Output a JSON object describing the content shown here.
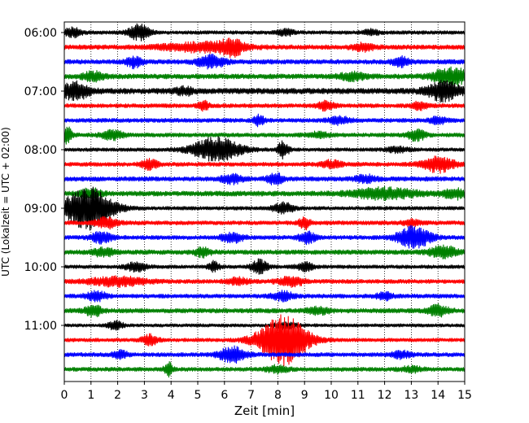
{
  "chart_data": {
    "type": "line",
    "subtype": "helicorder-seismogram",
    "title": "",
    "xlabel": "Zeit  [min]",
    "ylabel": "UTC (Lokalzeit = UTC + 02:00)",
    "xlim": [
      0,
      15
    ],
    "x_ticks": [
      0,
      1,
      2,
      3,
      4,
      5,
      6,
      7,
      8,
      9,
      10,
      11,
      12,
      13,
      14,
      15
    ],
    "y_tick_labels": [
      "06:00",
      "07:00",
      "08:00",
      "09:00",
      "10:00",
      "11:00"
    ],
    "grid": {
      "vertical": true,
      "style": "dotted"
    },
    "line_minutes": 15,
    "trace_colors": [
      "#000000",
      "#ff0000",
      "#0000ff",
      "#008000"
    ],
    "traces": [
      {
        "start": "06:00",
        "base": 0.22,
        "events": [
          [
            0.3,
            0.5,
            0.35
          ],
          [
            2.8,
            0.9,
            0.4
          ],
          [
            8.3,
            0.4,
            0.3
          ],
          [
            11.5,
            0.3,
            0.3
          ]
        ]
      },
      {
        "start": "06:15",
        "base": 0.28,
        "events": [
          [
            5.2,
            0.5,
            1.5
          ],
          [
            6.3,
            0.8,
            0.4
          ],
          [
            11.2,
            0.4,
            0.4
          ]
        ]
      },
      {
        "start": "06:30",
        "base": 0.28,
        "events": [
          [
            2.6,
            0.6,
            0.3
          ],
          [
            5.5,
            0.7,
            0.5
          ],
          [
            12.6,
            0.6,
            0.3
          ]
        ]
      },
      {
        "start": "06:45",
        "base": 0.3,
        "events": [
          [
            1.1,
            0.5,
            0.4
          ],
          [
            10.8,
            0.4,
            0.5
          ],
          [
            14.5,
            1.0,
            0.7
          ]
        ]
      },
      {
        "start": "07:00",
        "base": 0.35,
        "events": [
          [
            0.4,
            1.0,
            0.5
          ],
          [
            14.2,
            1.1,
            0.6
          ],
          [
            4.5,
            0.4,
            0.3
          ]
        ]
      },
      {
        "start": "07:15",
        "base": 0.25,
        "events": [
          [
            5.2,
            0.6,
            0.2
          ],
          [
            9.8,
            0.5,
            0.3
          ],
          [
            13.3,
            0.4,
            0.3
          ]
        ]
      },
      {
        "start": "07:30",
        "base": 0.25,
        "events": [
          [
            7.3,
            0.6,
            0.2
          ],
          [
            10.3,
            0.4,
            0.4
          ],
          [
            14.0,
            0.4,
            0.3
          ]
        ]
      },
      {
        "start": "07:45",
        "base": 0.25,
        "events": [
          [
            0.1,
            0.9,
            0.2
          ],
          [
            1.8,
            0.5,
            0.4
          ],
          [
            13.2,
            0.7,
            0.3
          ],
          [
            9.5,
            0.3,
            0.4
          ]
        ]
      },
      {
        "start": "08:00",
        "base": 0.22,
        "events": [
          [
            5.7,
            1.4,
            0.9
          ],
          [
            8.2,
            1.0,
            0.2
          ],
          [
            12.5,
            0.3,
            0.4
          ]
        ]
      },
      {
        "start": "08:15",
        "base": 0.25,
        "events": [
          [
            3.2,
            0.6,
            0.3
          ],
          [
            10.0,
            0.4,
            0.4
          ],
          [
            14.0,
            0.9,
            0.6
          ]
        ]
      },
      {
        "start": "08:30",
        "base": 0.28,
        "events": [
          [
            6.3,
            0.5,
            0.4
          ],
          [
            7.9,
            0.6,
            0.3
          ],
          [
            11.3,
            0.4,
            0.4
          ]
        ]
      },
      {
        "start": "08:45",
        "base": 0.3,
        "events": [
          [
            1.0,
            0.5,
            0.4
          ],
          [
            12.0,
            0.6,
            1.2
          ],
          [
            14.6,
            0.6,
            0.4
          ]
        ]
      },
      {
        "start": "09:00",
        "base": 0.22,
        "events": [
          [
            0.9,
            2.5,
            0.9
          ],
          [
            8.2,
            0.6,
            0.4
          ]
        ]
      },
      {
        "start": "09:15",
        "base": 0.25,
        "events": [
          [
            1.6,
            0.6,
            0.4
          ],
          [
            9.0,
            0.7,
            0.2
          ],
          [
            13.0,
            0.4,
            0.3
          ]
        ]
      },
      {
        "start": "09:30",
        "base": 0.25,
        "events": [
          [
            1.4,
            0.6,
            0.4
          ],
          [
            6.3,
            0.6,
            0.4
          ],
          [
            9.1,
            0.7,
            0.3
          ],
          [
            13.1,
            1.3,
            0.6
          ]
        ]
      },
      {
        "start": "09:45",
        "base": 0.28,
        "events": [
          [
            1.5,
            0.5,
            0.4
          ],
          [
            5.2,
            0.5,
            0.3
          ],
          [
            14.2,
            0.7,
            0.5
          ]
        ]
      },
      {
        "start": "10:00",
        "base": 0.22,
        "events": [
          [
            2.7,
            0.5,
            0.4
          ],
          [
            5.6,
            0.6,
            0.2
          ],
          [
            7.3,
            0.8,
            0.3
          ],
          [
            9.0,
            0.5,
            0.3
          ]
        ]
      },
      {
        "start": "10:15",
        "base": 0.25,
        "events": [
          [
            2.0,
            0.5,
            1.1
          ],
          [
            6.5,
            0.4,
            0.4
          ],
          [
            8.5,
            0.5,
            0.5
          ]
        ]
      },
      {
        "start": "10:30",
        "base": 0.25,
        "events": [
          [
            1.2,
            0.5,
            0.4
          ],
          [
            8.2,
            0.5,
            0.4
          ],
          [
            12.0,
            0.4,
            0.3
          ]
        ]
      },
      {
        "start": "10:45",
        "base": 0.28,
        "events": [
          [
            1.1,
            0.6,
            0.3
          ],
          [
            9.5,
            0.4,
            0.4
          ],
          [
            14.0,
            0.6,
            0.4
          ]
        ]
      },
      {
        "start": "11:00",
        "base": 0.2,
        "events": [
          [
            1.9,
            0.5,
            0.3
          ],
          [
            8.3,
            0.4,
            0.4
          ]
        ]
      },
      {
        "start": "11:15",
        "base": 0.22,
        "events": [
          [
            3.2,
            0.6,
            0.3
          ],
          [
            8.2,
            3.0,
            0.9
          ]
        ]
      },
      {
        "start": "11:30",
        "base": 0.25,
        "events": [
          [
            6.3,
            0.9,
            0.5
          ],
          [
            2.1,
            0.4,
            0.3
          ],
          [
            12.6,
            0.4,
            0.4
          ]
        ]
      },
      {
        "start": "11:45",
        "base": 0.25,
        "events": [
          [
            3.9,
            0.8,
            0.15
          ],
          [
            8.0,
            0.4,
            0.4
          ],
          [
            13.0,
            0.3,
            0.4
          ]
        ]
      }
    ]
  }
}
